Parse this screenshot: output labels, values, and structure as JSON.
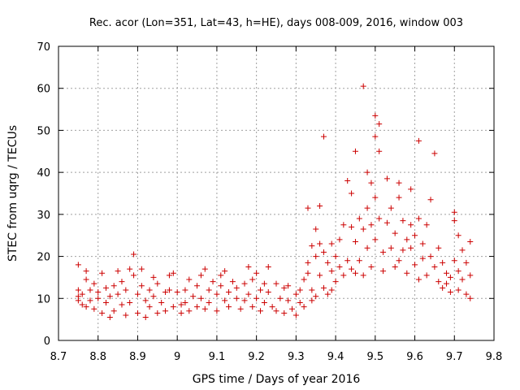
{
  "chart_data": {
    "type": "scatter",
    "title": "Rec. acor (Lon=351, Lat=43, h=HE), days 008-009, 2016, window 003",
    "xlabel": "GPS time / Days of year 2016",
    "ylabel": "STEC from uqrg / TECUs",
    "xlim": [
      8.7,
      9.8
    ],
    "ylim": [
      0,
      70
    ],
    "xticks": [
      "8.7",
      "8.8",
      "8.9",
      "9",
      "9.1",
      "9.2",
      "9.3",
      "9.4",
      "9.5",
      "9.6",
      "9.7",
      "9.8"
    ],
    "yticks": [
      "0",
      "10",
      "20",
      "30",
      "40",
      "50",
      "60",
      "70"
    ],
    "grid": true,
    "marker": "+",
    "color": "#cc0000",
    "series": [
      {
        "points": [
          [
            8.75,
            18.0
          ],
          [
            8.75,
            12.0
          ],
          [
            8.75,
            10.5
          ],
          [
            8.75,
            9.5
          ],
          [
            8.76,
            8.5
          ],
          [
            8.76,
            11.0
          ],
          [
            8.77,
            16.5
          ],
          [
            8.77,
            14.5
          ],
          [
            8.77,
            8.0
          ],
          [
            8.78,
            12.0
          ],
          [
            8.78,
            9.5
          ],
          [
            8.79,
            7.5
          ],
          [
            8.79,
            13.5
          ],
          [
            8.8,
            11.5
          ],
          [
            8.8,
            10.0
          ],
          [
            8.81,
            6.5
          ],
          [
            8.81,
            16.0
          ],
          [
            8.82,
            9.0
          ],
          [
            8.82,
            12.5
          ],
          [
            8.83,
            5.5
          ],
          [
            8.83,
            10.5
          ],
          [
            8.84,
            13.0
          ],
          [
            8.84,
            7.0
          ],
          [
            8.85,
            16.5
          ],
          [
            8.85,
            11.0
          ],
          [
            8.86,
            8.5
          ],
          [
            8.86,
            14.0
          ],
          [
            8.87,
            6.0
          ],
          [
            8.87,
            12.0
          ],
          [
            8.88,
            17.0
          ],
          [
            8.88,
            9.0
          ],
          [
            8.89,
            20.5
          ],
          [
            8.89,
            15.5
          ],
          [
            8.9,
            11.0
          ],
          [
            8.9,
            6.5
          ],
          [
            8.91,
            17.0
          ],
          [
            8.91,
            13.0
          ],
          [
            8.92,
            9.5
          ],
          [
            8.92,
            5.5
          ],
          [
            8.93,
            12.0
          ],
          [
            8.93,
            8.0
          ],
          [
            8.94,
            15.0
          ],
          [
            8.94,
            10.5
          ],
          [
            8.95,
            6.5
          ],
          [
            8.95,
            13.5
          ],
          [
            8.96,
            9.0
          ],
          [
            8.97,
            11.5
          ],
          [
            8.97,
            7.0
          ],
          [
            8.98,
            15.5
          ],
          [
            8.98,
            12.0
          ],
          [
            8.99,
            8.0
          ],
          [
            8.99,
            16.0
          ],
          [
            9.0,
            11.5
          ],
          [
            9.01,
            8.5
          ],
          [
            9.01,
            6.5
          ],
          [
            9.02,
            12.0
          ],
          [
            9.02,
            9.0
          ],
          [
            9.03,
            14.5
          ],
          [
            9.03,
            7.0
          ],
          [
            9.04,
            10.5
          ],
          [
            9.05,
            13.0
          ],
          [
            9.05,
            8.0
          ],
          [
            9.06,
            15.5
          ],
          [
            9.06,
            10.0
          ],
          [
            9.07,
            17.0
          ],
          [
            9.07,
            7.5
          ],
          [
            9.08,
            12.0
          ],
          [
            9.08,
            9.0
          ],
          [
            9.09,
            14.0
          ],
          [
            9.1,
            11.0
          ],
          [
            9.1,
            7.0
          ],
          [
            9.11,
            15.5
          ],
          [
            9.11,
            13.0
          ],
          [
            9.12,
            9.5
          ],
          [
            9.12,
            16.5
          ],
          [
            9.13,
            11.5
          ],
          [
            9.13,
            8.0
          ],
          [
            9.14,
            14.0
          ],
          [
            9.15,
            10.0
          ],
          [
            9.15,
            12.5
          ],
          [
            9.16,
            7.5
          ],
          [
            9.17,
            13.5
          ],
          [
            9.17,
            9.5
          ],
          [
            9.18,
            17.5
          ],
          [
            9.18,
            11.0
          ],
          [
            9.19,
            8.0
          ],
          [
            9.19,
            14.5
          ],
          [
            9.2,
            10.0
          ],
          [
            9.2,
            16.0
          ],
          [
            9.21,
            12.0
          ],
          [
            9.21,
            7.0
          ],
          [
            9.22,
            13.5
          ],
          [
            9.22,
            9.0
          ],
          [
            9.23,
            17.5
          ],
          [
            9.23,
            11.5
          ],
          [
            9.24,
            8.0
          ],
          [
            9.25,
            13.5
          ],
          [
            9.25,
            7.0
          ],
          [
            9.26,
            10.0
          ],
          [
            9.27,
            12.5
          ],
          [
            9.27,
            6.5
          ],
          [
            9.28,
            9.5
          ],
          [
            9.28,
            13.0
          ],
          [
            9.29,
            7.5
          ],
          [
            9.3,
            11.0
          ],
          [
            9.3,
            6.0
          ],
          [
            9.31,
            12.0
          ],
          [
            9.31,
            9.0
          ],
          [
            9.32,
            14.5
          ],
          [
            9.32,
            8.0
          ],
          [
            9.33,
            31.5
          ],
          [
            9.33,
            18.5
          ],
          [
            9.33,
            16.0
          ],
          [
            9.34,
            22.5
          ],
          [
            9.34,
            12.0
          ],
          [
            9.34,
            9.5
          ],
          [
            9.35,
            26.5
          ],
          [
            9.35,
            20.0
          ],
          [
            9.35,
            10.5
          ],
          [
            9.36,
            32.0
          ],
          [
            9.36,
            23.0
          ],
          [
            9.36,
            15.5
          ],
          [
            9.37,
            48.5
          ],
          [
            9.37,
            21.0
          ],
          [
            9.37,
            12.5
          ],
          [
            9.38,
            18.5
          ],
          [
            9.38,
            11.0
          ],
          [
            9.39,
            23.0
          ],
          [
            9.39,
            16.5
          ],
          [
            9.39,
            12.0
          ],
          [
            9.4,
            20.0
          ],
          [
            9.4,
            14.0
          ],
          [
            9.41,
            24.0
          ],
          [
            9.41,
            17.5
          ],
          [
            9.42,
            27.5
          ],
          [
            9.42,
            15.5
          ],
          [
            9.43,
            38.0
          ],
          [
            9.43,
            19.0
          ],
          [
            9.44,
            35.0
          ],
          [
            9.44,
            27.0
          ],
          [
            9.44,
            17.0
          ],
          [
            9.45,
            45.0
          ],
          [
            9.45,
            23.5
          ],
          [
            9.45,
            16.0
          ],
          [
            9.46,
            29.0
          ],
          [
            9.46,
            19.0
          ],
          [
            9.47,
            60.5
          ],
          [
            9.47,
            26.5
          ],
          [
            9.47,
            15.5
          ],
          [
            9.48,
            40.0
          ],
          [
            9.48,
            31.5
          ],
          [
            9.48,
            22.0
          ],
          [
            9.49,
            37.5
          ],
          [
            9.49,
            27.5
          ],
          [
            9.49,
            17.5
          ],
          [
            9.5,
            53.5
          ],
          [
            9.5,
            48.5
          ],
          [
            9.5,
            34.0
          ],
          [
            9.5,
            24.0
          ],
          [
            9.51,
            51.5
          ],
          [
            9.51,
            45.0
          ],
          [
            9.51,
            29.0
          ],
          [
            9.52,
            21.0
          ],
          [
            9.52,
            16.5
          ],
          [
            9.53,
            38.5
          ],
          [
            9.53,
            28.0
          ],
          [
            9.54,
            31.5
          ],
          [
            9.54,
            22.0
          ],
          [
            9.55,
            25.5
          ],
          [
            9.55,
            17.5
          ],
          [
            9.56,
            37.5
          ],
          [
            9.56,
            34.0
          ],
          [
            9.56,
            19.0
          ],
          [
            9.57,
            28.5
          ],
          [
            9.57,
            21.5
          ],
          [
            9.58,
            24.0
          ],
          [
            9.58,
            16.0
          ],
          [
            9.59,
            36.0
          ],
          [
            9.59,
            27.5
          ],
          [
            9.59,
            22.0
          ],
          [
            9.6,
            25.0
          ],
          [
            9.6,
            18.0
          ],
          [
            9.61,
            47.5
          ],
          [
            9.61,
            29.0
          ],
          [
            9.61,
            14.5
          ],
          [
            9.62,
            23.0
          ],
          [
            9.62,
            19.5
          ],
          [
            9.63,
            27.5
          ],
          [
            9.63,
            15.5
          ],
          [
            9.64,
            33.5
          ],
          [
            9.64,
            20.0
          ],
          [
            9.65,
            44.5
          ],
          [
            9.65,
            17.5
          ],
          [
            9.66,
            22.0
          ],
          [
            9.66,
            14.0
          ],
          [
            9.67,
            18.5
          ],
          [
            9.67,
            12.5
          ],
          [
            9.68,
            16.0
          ],
          [
            9.68,
            13.5
          ],
          [
            9.69,
            15.0
          ],
          [
            9.69,
            11.5
          ],
          [
            9.7,
            30.5
          ],
          [
            9.7,
            28.5
          ],
          [
            9.7,
            19.0
          ],
          [
            9.71,
            25.0
          ],
          [
            9.71,
            16.5
          ],
          [
            9.71,
            12.0
          ],
          [
            9.72,
            21.5
          ],
          [
            9.72,
            14.5
          ],
          [
            9.73,
            18.5
          ],
          [
            9.73,
            11.0
          ],
          [
            9.74,
            23.5
          ],
          [
            9.74,
            15.5
          ],
          [
            9.74,
            10.0
          ]
        ]
      }
    ]
  }
}
